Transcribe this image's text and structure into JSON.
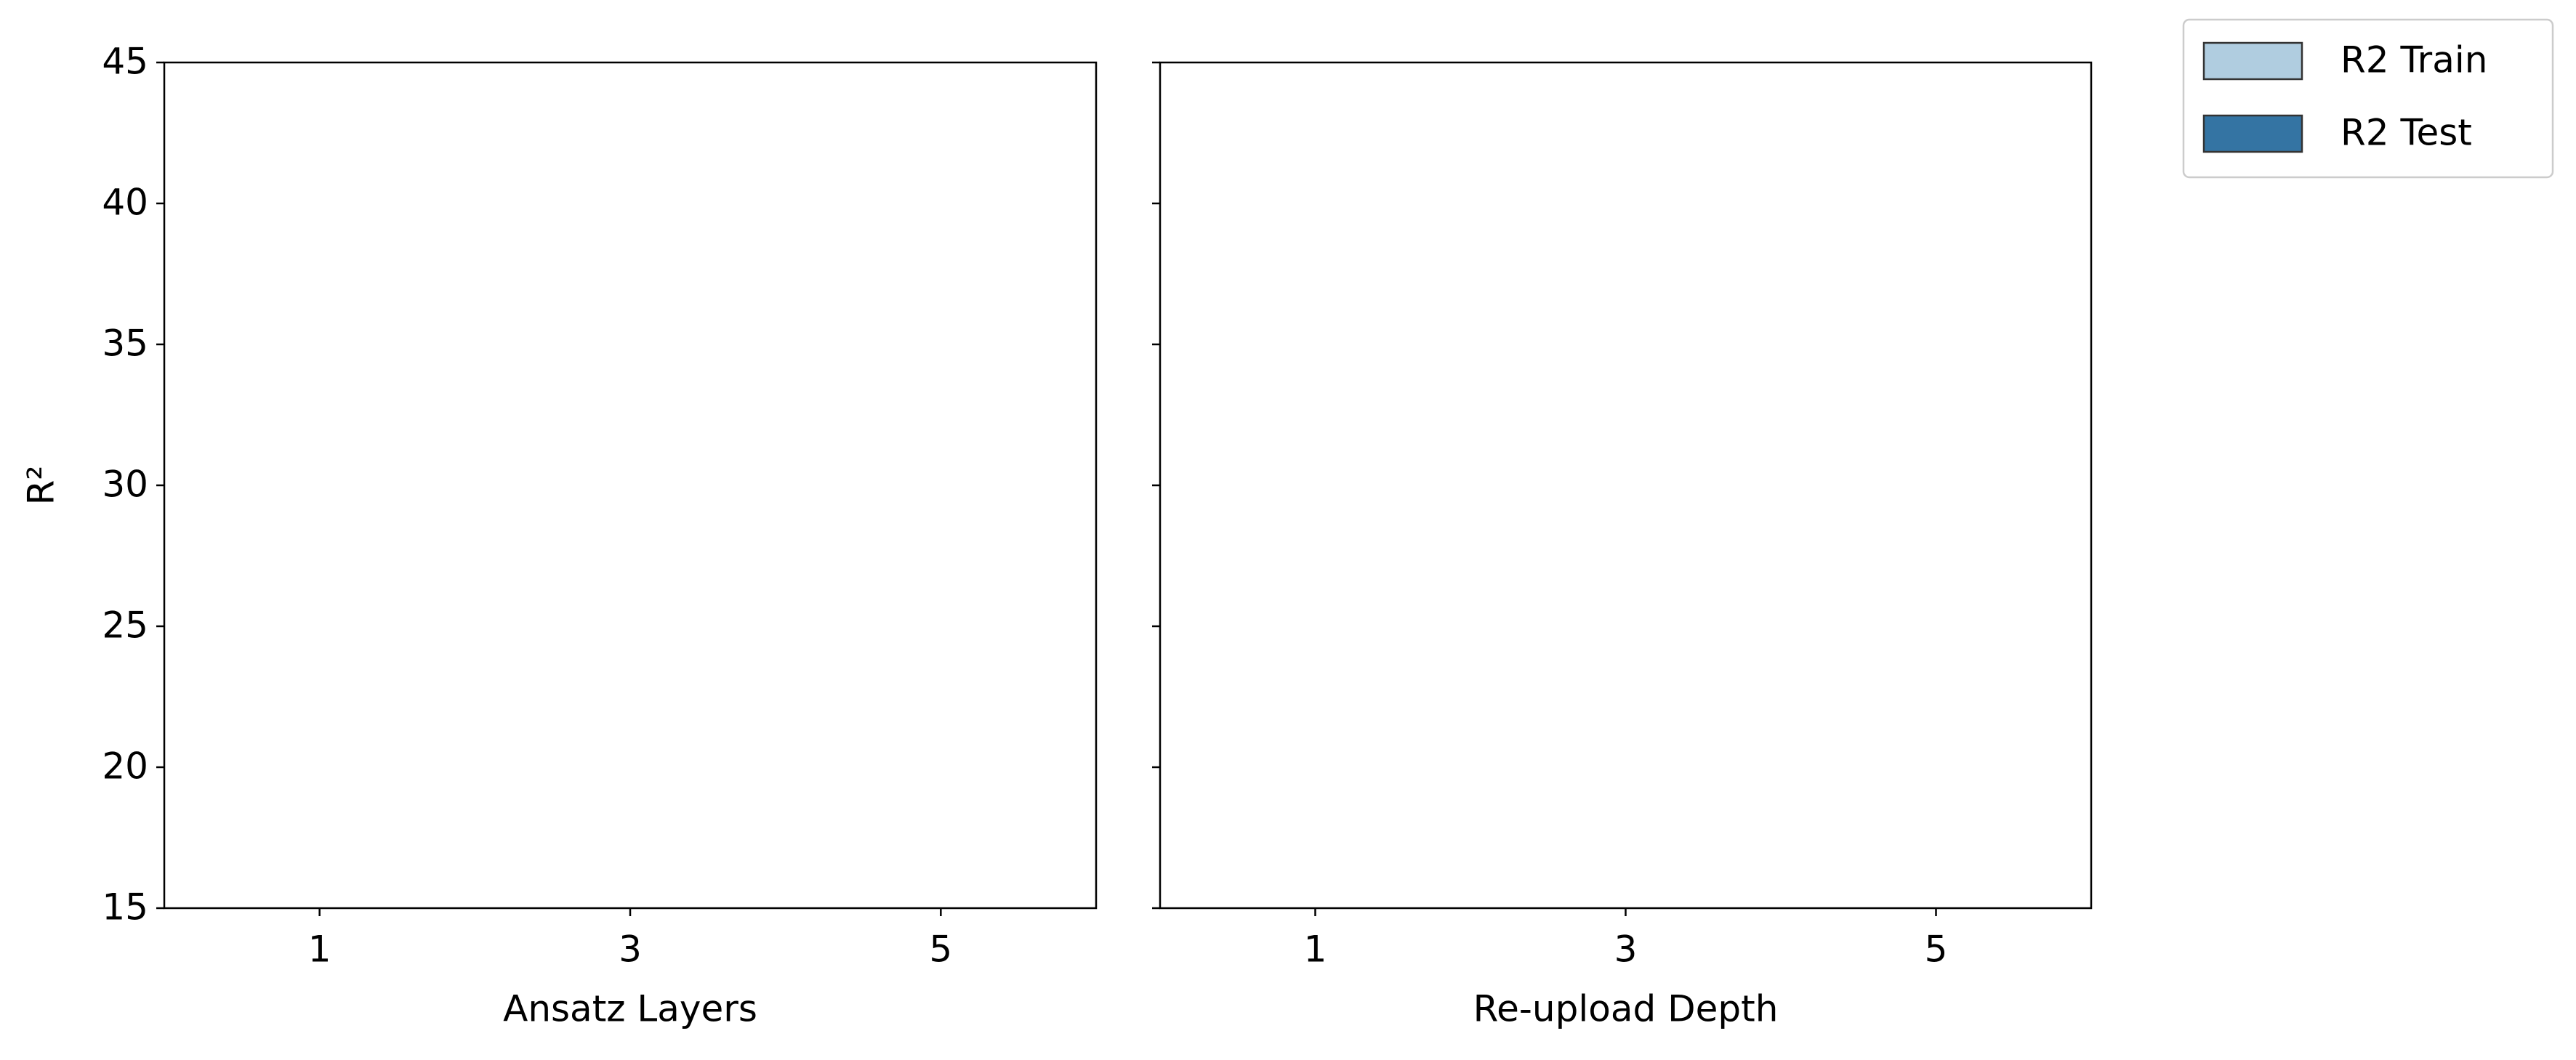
{
  "chart_data": [
    {
      "type": "bar",
      "xlabel": "Ansatz Layers",
      "ylabel": "R²",
      "categories": [
        1,
        3,
        5
      ],
      "series": [
        {
          "name": "R2 Train",
          "color": "#b0cde0",
          "values": [
            null,
            null,
            null
          ]
        },
        {
          "name": "R2 Test",
          "color": "#3474a3",
          "values": [
            null,
            null,
            null
          ]
        }
      ],
      "ylim": [
        15,
        45
      ],
      "yticks": [
        15,
        20,
        25,
        30,
        35,
        40,
        45
      ],
      "legend": "outside upper right"
    },
    {
      "type": "bar",
      "xlabel": "Re-upload Depth",
      "categories": [
        1,
        3,
        5
      ],
      "series": [
        {
          "color": "#b0cde0",
          "values": [
            null,
            null,
            null
          ]
        },
        {
          "color": "#3474a3",
          "values": [
            null,
            null,
            null
          ]
        }
      ],
      "ylim": [
        15,
        45
      ],
      "yticks": [
        15,
        20,
        25,
        30,
        35,
        40,
        45
      ]
    }
  ]
}
